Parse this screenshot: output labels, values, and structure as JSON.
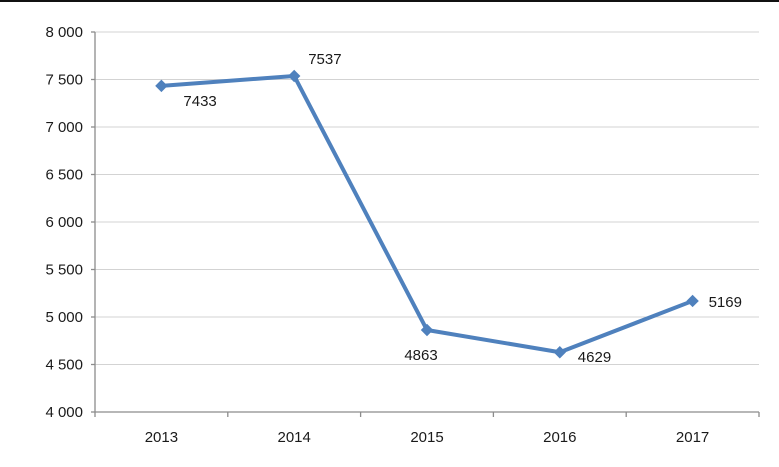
{
  "page": {
    "background": "#ffffff"
  },
  "chart_data": {
    "type": "line",
    "title": "",
    "xlabel": "",
    "ylabel": "",
    "categories": [
      "2013",
      "2014",
      "2015",
      "2016",
      "2017"
    ],
    "series": [
      {
        "name": "series-1",
        "values": [
          7433,
          7537,
          4863,
          4629,
          5169
        ]
      }
    ],
    "data_labels": [
      "7433",
      "7537",
      "4863",
      "4629",
      "5169"
    ],
    "label_placement": [
      "below-right",
      "above-right",
      "below",
      "right-below",
      "right"
    ],
    "ylim": [
      4000,
      8000
    ],
    "ytick_step": 500,
    "yticks": [
      4000,
      4500,
      5000,
      5500,
      6000,
      6500,
      7000,
      7500,
      8000
    ],
    "ytick_labels": [
      "4 000",
      "4 500",
      "5 000",
      "5 500",
      "6 000",
      "6 500",
      "7 000",
      "7 500",
      "8 000"
    ],
    "grid": true,
    "legend": "none",
    "line_color": "#4f81bd",
    "marker": "diamond",
    "marker_color": "#4f81bd",
    "gridline_color": "#d3d3d3",
    "axis_color": "#8c8c8c",
    "text_color": "#1a1a1a"
  }
}
